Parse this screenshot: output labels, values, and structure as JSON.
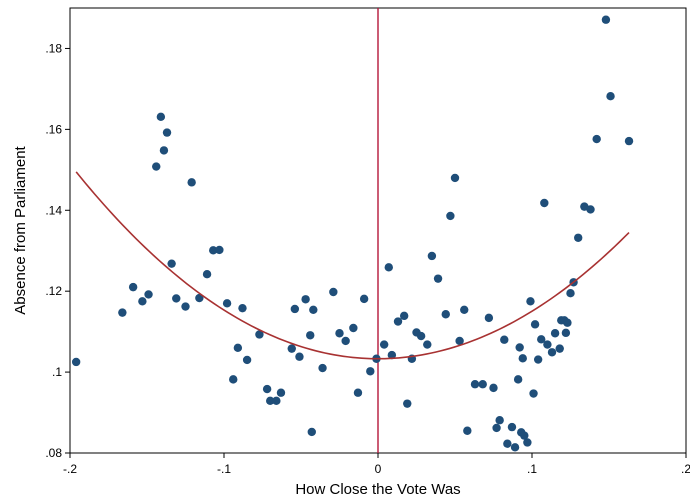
{
  "chart_data": {
    "type": "scatter",
    "xlabel": "How Close the Vote Was",
    "ylabel": "Absence from Parliament",
    "xlim": [
      -0.2,
      0.2
    ],
    "ylim": [
      0.08,
      0.19
    ],
    "x_ticks": [
      -0.2,
      -0.1,
      0,
      0.1,
      0.2
    ],
    "x_tick_labels": [
      "-.2",
      "-.1",
      "0",
      ".1",
      ".2"
    ],
    "y_ticks": [
      0.08,
      0.1,
      0.12,
      0.14,
      0.16,
      0.18
    ],
    "y_tick_labels": [
      ".08",
      ".1",
      ".12",
      ".14",
      ".16",
      ".18"
    ],
    "grid": false,
    "cutoff_line_x": 0,
    "colors": {
      "points": "#1f4e79",
      "fit_curve": "#a83232",
      "cutoff_line": "#b5173a"
    },
    "fit_curve": {
      "type": "quadratic",
      "x_range": [
        -0.196,
        0.163
      ],
      "y_at_start": 0.1495,
      "y_at_min": 0.1033,
      "x_at_min": 0.0,
      "y_at_end": 0.1345
    },
    "points": [
      [
        -0.196,
        0.1025
      ],
      [
        -0.166,
        0.1147
      ],
      [
        -0.159,
        0.121
      ],
      [
        -0.153,
        0.1175
      ],
      [
        -0.149,
        0.1192
      ],
      [
        -0.144,
        0.1508
      ],
      [
        -0.141,
        0.1631
      ],
      [
        -0.139,
        0.1548
      ],
      [
        -0.137,
        0.1592
      ],
      [
        -0.134,
        0.1268
      ],
      [
        -0.131,
        0.1182
      ],
      [
        -0.125,
        0.1162
      ],
      [
        -0.121,
        0.1469
      ],
      [
        -0.116,
        0.1183
      ],
      [
        -0.111,
        0.1242
      ],
      [
        -0.107,
        0.1301
      ],
      [
        -0.103,
        0.1302
      ],
      [
        -0.098,
        0.117
      ],
      [
        -0.094,
        0.0982
      ],
      [
        -0.091,
        0.106
      ],
      [
        -0.088,
        0.1158
      ],
      [
        -0.085,
        0.103
      ],
      [
        -0.077,
        0.1093
      ],
      [
        -0.072,
        0.0958
      ],
      [
        -0.07,
        0.0929
      ],
      [
        -0.066,
        0.0929
      ],
      [
        -0.063,
        0.0949
      ],
      [
        -0.056,
        0.1058
      ],
      [
        -0.054,
        0.1156
      ],
      [
        -0.051,
        0.1038
      ],
      [
        -0.047,
        0.118
      ],
      [
        -0.044,
        0.1091
      ],
      [
        -0.042,
        0.1154
      ],
      [
        -0.043,
        0.0852
      ],
      [
        -0.036,
        0.101
      ],
      [
        -0.029,
        0.1198
      ],
      [
        -0.025,
        0.1096
      ],
      [
        -0.021,
        0.1077
      ],
      [
        -0.016,
        0.1109
      ],
      [
        -0.013,
        0.0949
      ],
      [
        -0.009,
        0.1181
      ],
      [
        -0.005,
        0.1002
      ],
      [
        -0.001,
        0.1033
      ],
      [
        0.004,
        0.1068
      ],
      [
        0.007,
        0.1259
      ],
      [
        0.009,
        0.1042
      ],
      [
        0.013,
        0.1125
      ],
      [
        0.017,
        0.1139
      ],
      [
        0.019,
        0.0922
      ],
      [
        0.022,
        0.1033
      ],
      [
        0.025,
        0.1098
      ],
      [
        0.028,
        0.1089
      ],
      [
        0.032,
        0.1068
      ],
      [
        0.035,
        0.1287
      ],
      [
        0.039,
        0.1231
      ],
      [
        0.044,
        0.1143
      ],
      [
        0.047,
        0.1386
      ],
      [
        0.05,
        0.148
      ],
      [
        0.053,
        0.1077
      ],
      [
        0.056,
        0.1154
      ],
      [
        0.058,
        0.0855
      ],
      [
        0.063,
        0.097
      ],
      [
        0.068,
        0.097
      ],
      [
        0.072,
        0.1134
      ],
      [
        0.075,
        0.0961
      ],
      [
        0.077,
        0.0862
      ],
      [
        0.079,
        0.0881
      ],
      [
        0.082,
        0.108
      ],
      [
        0.084,
        0.0823
      ],
      [
        0.087,
        0.0864
      ],
      [
        0.089,
        0.0814
      ],
      [
        0.091,
        0.0982
      ],
      [
        0.092,
        0.1061
      ],
      [
        0.093,
        0.0851
      ],
      [
        0.094,
        0.1034
      ],
      [
        0.095,
        0.0843
      ],
      [
        0.097,
        0.0826
      ],
      [
        0.099,
        0.1175
      ],
      [
        0.101,
        0.0947
      ],
      [
        0.102,
        0.1118
      ],
      [
        0.104,
        0.1031
      ],
      [
        0.106,
        0.1081
      ],
      [
        0.108,
        0.1418
      ],
      [
        0.11,
        0.1068
      ],
      [
        0.113,
        0.1049
      ],
      [
        0.115,
        0.1096
      ],
      [
        0.118,
        0.1058
      ],
      [
        0.119,
        0.1128
      ],
      [
        0.121,
        0.1128
      ],
      [
        0.122,
        0.1097
      ],
      [
        0.123,
        0.1122
      ],
      [
        0.125,
        0.1195
      ],
      [
        0.127,
        0.1222
      ],
      [
        0.13,
        0.1332
      ],
      [
        0.134,
        0.1409
      ],
      [
        0.138,
        0.1402
      ],
      [
        0.142,
        0.1576
      ],
      [
        0.148,
        0.1871
      ],
      [
        0.151,
        0.1682
      ],
      [
        0.163,
        0.1571
      ]
    ]
  }
}
